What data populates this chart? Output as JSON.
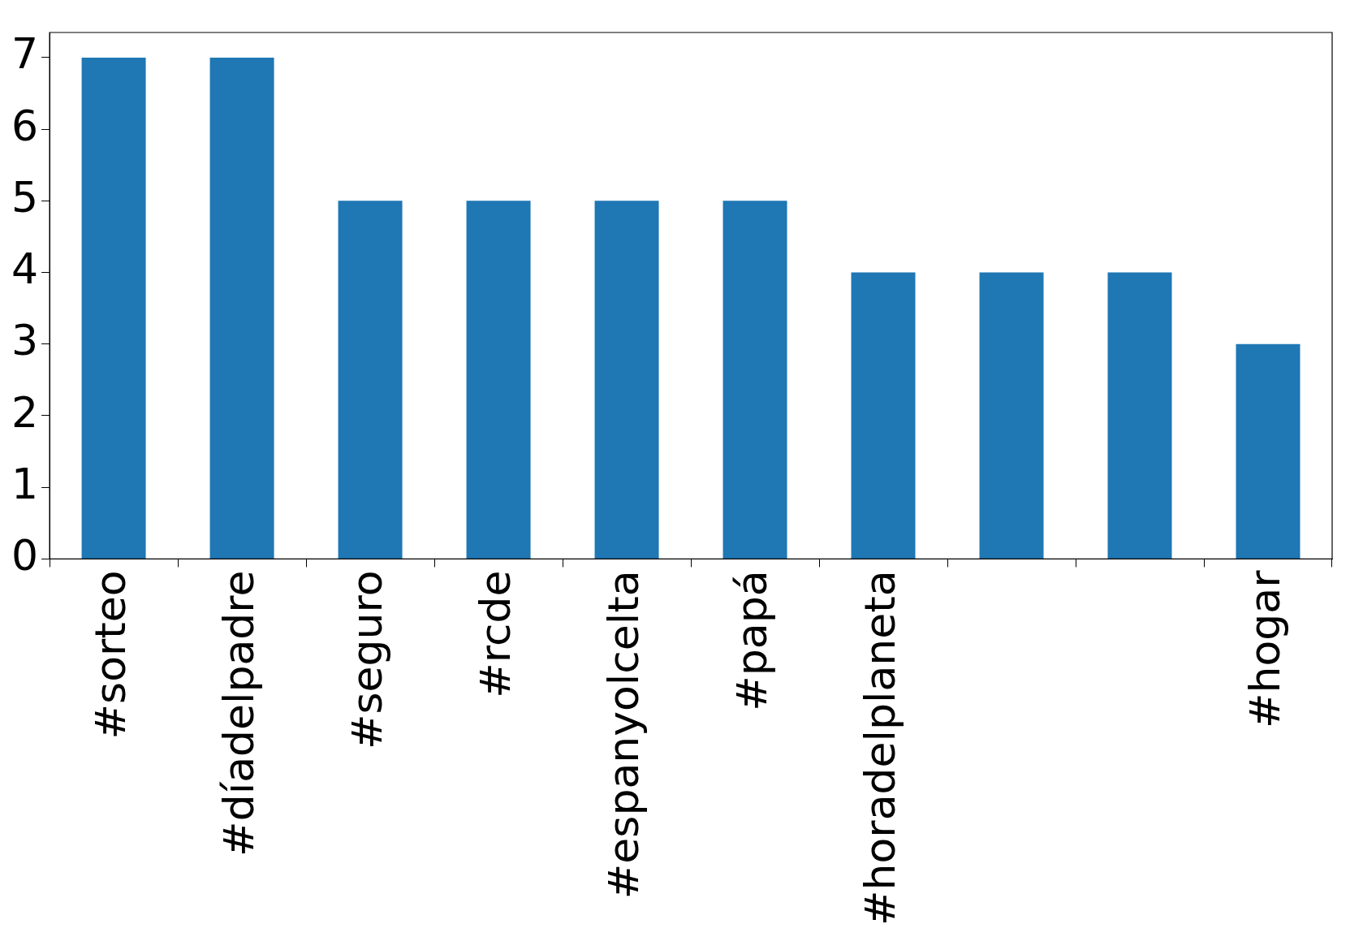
{
  "chart_data": {
    "type": "bar",
    "categories": [
      "#sorteo",
      "#díadelpadre",
      "#seguro",
      "#rcde",
      "#espanyolcelta",
      "#papá",
      "#horadelplaneta",
      null,
      null,
      "#hogar"
    ],
    "values": [
      7,
      7,
      5,
      5,
      5,
      5,
      4,
      4,
      4,
      3
    ],
    "color": "#1f77b4",
    "ylim": [
      0,
      7.35
    ],
    "yticks": [
      0,
      1,
      2,
      3,
      4,
      5,
      6,
      7
    ],
    "grid": false,
    "legend": false
  }
}
